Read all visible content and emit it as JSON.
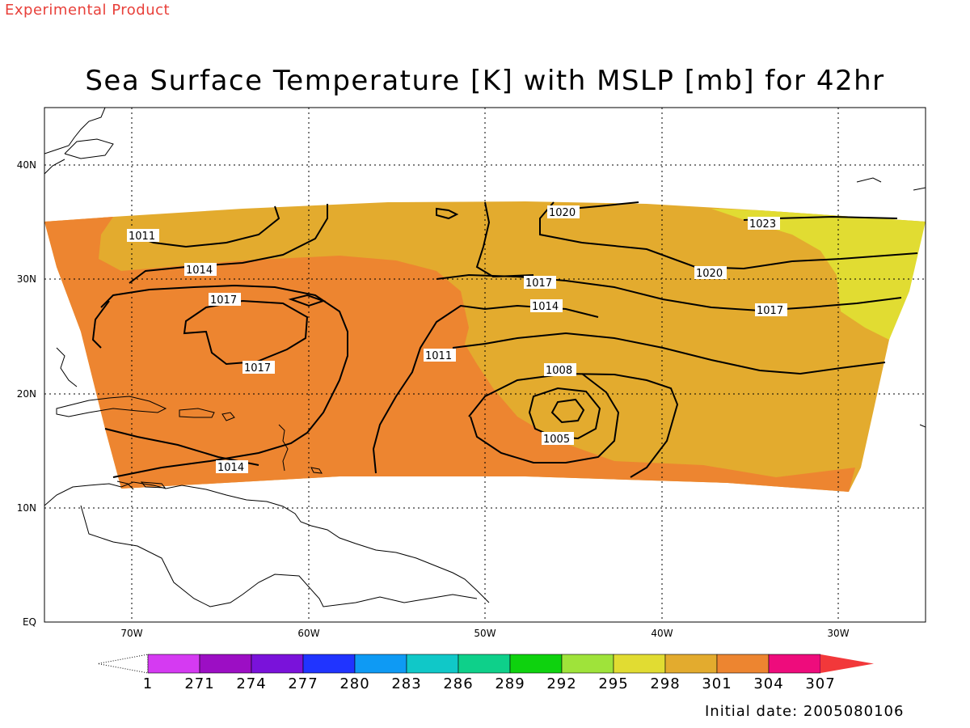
{
  "header": {
    "product_label": "Experimental Product",
    "title": "Sea Surface Temperature [K] with MSLP [mb] for 42hr",
    "initial_date": "Initial date: 2005080106"
  },
  "map": {
    "lon_ticks": [
      "70W",
      "60W",
      "50W",
      "40W",
      "30W"
    ],
    "lat_ticks": [
      "EQ",
      "10N",
      "20N",
      "30N",
      "40N"
    ],
    "pressure_labels": [
      "1011",
      "1014",
      "1017",
      "1017",
      "1011",
      "1008",
      "1005",
      "1014",
      "1017",
      "1020",
      "1020",
      "1017",
      "1023",
      "1014"
    ],
    "colors": {
      "sst_298_301": "#e3ab2e",
      "sst_301_304": "#ed8530",
      "sst_295_298": "#e1dc32"
    }
  },
  "colorbar": {
    "labels": [
      "1",
      "271",
      "274",
      "277",
      "280",
      "283",
      "286",
      "289",
      "292",
      "295",
      "298",
      "301",
      "304",
      "307"
    ],
    "colors": [
      "#d53af2",
      "#9c0ec4",
      "#7a12da",
      "#2034ff",
      "#0e9af4",
      "#10c8c8",
      "#0ed08a",
      "#0ed20e",
      "#9fe33a",
      "#e1dc32",
      "#e3ab2e",
      "#ed8530",
      "#ee0c7c",
      "#f2383a"
    ]
  }
}
